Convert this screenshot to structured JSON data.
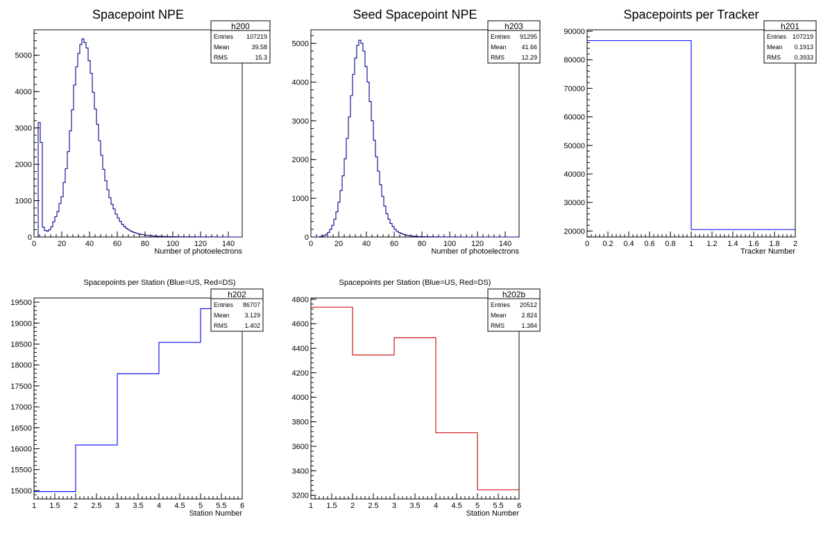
{
  "chart_data": [
    {
      "id": "h200",
      "type": "histogram",
      "title": "Spacepoint NPE",
      "xlabel": "Number of photoelectrons",
      "ylabel": "",
      "xlim": [
        0,
        150
      ],
      "ylim": [
        0,
        5700
      ],
      "x_ticks": [
        0,
        20,
        40,
        60,
        80,
        100,
        120,
        140
      ],
      "y_ticks": [
        0,
        1000,
        2000,
        3000,
        4000,
        5000
      ],
      "line_color": "#00008b",
      "bin_width": 1.5,
      "values": [
        0,
        0,
        3150,
        2600,
        270,
        180,
        160,
        200,
        280,
        420,
        560,
        700,
        920,
        1110,
        1500,
        1880,
        2350,
        2920,
        3500,
        4180,
        4680,
        5050,
        5300,
        5450,
        5350,
        5200,
        4850,
        4500,
        3980,
        3520,
        3100,
        2650,
        2250,
        1860,
        1550,
        1300,
        1080,
        900,
        770,
        630,
        520,
        430,
        350,
        290,
        240,
        200,
        165,
        140,
        120,
        100,
        85,
        72,
        62,
        52,
        45,
        38,
        32,
        28,
        24,
        20,
        18,
        16,
        14,
        12,
        11,
        10,
        9,
        8,
        7,
        6,
        5,
        5,
        4,
        4,
        3,
        3,
        3,
        2,
        2,
        2,
        2,
        1,
        1,
        1,
        1,
        1,
        1,
        1,
        0,
        0,
        0,
        0,
        0,
        0,
        0,
        0,
        0,
        0,
        0,
        0
      ],
      "stats": {
        "name": "h200",
        "rows": [
          [
            "Entries",
            "107219"
          ],
          [
            "Mean",
            "39.58"
          ],
          [
            "RMS",
            "15.3"
          ]
        ]
      }
    },
    {
      "id": "h203",
      "type": "histogram",
      "title": "Seed Spacepoint NPE",
      "xlabel": "Number of photoelectrons",
      "ylabel": "",
      "xlim": [
        0,
        150
      ],
      "ylim": [
        0,
        5350
      ],
      "x_ticks": [
        0,
        20,
        40,
        60,
        80,
        100,
        120,
        140
      ],
      "y_ticks": [
        0,
        1000,
        2000,
        3000,
        4000,
        5000
      ],
      "line_color": "#00008b",
      "bin_width": 1.5,
      "values": [
        0,
        0,
        0,
        0,
        10,
        20,
        40,
        70,
        120,
        200,
        300,
        460,
        650,
        900,
        1200,
        1580,
        2020,
        2550,
        3100,
        3650,
        4200,
        4620,
        4950,
        5080,
        5000,
        4800,
        4400,
        4000,
        3500,
        3000,
        2500,
        2070,
        1700,
        1350,
        1050,
        800,
        600,
        460,
        350,
        270,
        200,
        150,
        115,
        90,
        70,
        55,
        42,
        33,
        26,
        20,
        16,
        13,
        10,
        8,
        7,
        6,
        5,
        4,
        4,
        3,
        3,
        2,
        2,
        2,
        2,
        1,
        1,
        1,
        1,
        1,
        1,
        0,
        0,
        0,
        0,
        0,
        0,
        0,
        0,
        0,
        0,
        0,
        0,
        0,
        0,
        0,
        0,
        0,
        0,
        0,
        0,
        0,
        0,
        0,
        0,
        0,
        0,
        0,
        0,
        0
      ],
      "stats": {
        "name": "h203",
        "rows": [
          [
            "Entries",
            "91295"
          ],
          [
            "Mean",
            "41.66"
          ],
          [
            "RMS",
            "12.29"
          ]
        ]
      }
    },
    {
      "id": "h201",
      "type": "histogram",
      "title": "Spacepoints per Tracker",
      "xlabel": "Tracker Number",
      "ylabel": "",
      "xlim": [
        0,
        2
      ],
      "ylim": [
        17900,
        90500
      ],
      "x_ticks": [
        0,
        0.2,
        0.4,
        0.6,
        0.8,
        1,
        1.2,
        1.4,
        1.6,
        1.8,
        2
      ],
      "x_tick_labels": [
        "0",
        "0.2",
        "0.4",
        "0.6",
        "0.8",
        "1",
        "1.2",
        "1.4",
        "1.6",
        "1.8",
        "2"
      ],
      "y_ticks": [
        20000,
        30000,
        40000,
        50000,
        60000,
        70000,
        80000,
        90000
      ],
      "line_color": "#0000ff",
      "bin_width": 1,
      "values": [
        86707,
        20512
      ],
      "stats": {
        "name": "h201",
        "rows": [
          [
            "Entries",
            "107219"
          ],
          [
            "Mean",
            "0.1913"
          ],
          [
            "RMS",
            "0.3933"
          ]
        ]
      }
    },
    {
      "id": "h202",
      "type": "histogram",
      "title": "Spacepoints per Station (Blue=US, Red=DS)",
      "xlabel": "Station Number",
      "ylabel": "",
      "xlim": [
        1,
        6
      ],
      "ylim": [
        14800,
        19600
      ],
      "x_ticks": [
        1,
        1.5,
        2,
        2.5,
        3,
        3.5,
        4,
        4.5,
        5,
        5.5,
        6
      ],
      "x_tick_labels": [
        "1",
        "1.5",
        "2",
        "2.5",
        "3",
        "3.5",
        "4",
        "4.5",
        "5",
        "5.5",
        "6"
      ],
      "y_ticks": [
        15000,
        15500,
        16000,
        16500,
        17000,
        17500,
        18000,
        18500,
        19000,
        19500
      ],
      "line_color": "#0000ff",
      "bin_width": 1,
      "values": [
        14975,
        16090,
        17790,
        18540,
        19345
      ],
      "stats": {
        "name": "h202",
        "rows": [
          [
            "Entries",
            "86707"
          ],
          [
            "Mean",
            "3.129"
          ],
          [
            "RMS",
            "1.402"
          ]
        ]
      }
    },
    {
      "id": "h202b",
      "type": "histogram",
      "title": "Spacepoints per Station (Blue=US, Red=DS)",
      "xlabel": "Station Number",
      "ylabel": "",
      "xlim": [
        1,
        6
      ],
      "ylim": [
        3170,
        4810
      ],
      "x_ticks": [
        1,
        1.5,
        2,
        2.5,
        3,
        3.5,
        4,
        4.5,
        5,
        5.5,
        6
      ],
      "x_tick_labels": [
        "1",
        "1.5",
        "2",
        "2.5",
        "3",
        "3.5",
        "4",
        "4.5",
        "5",
        "5.5",
        "6"
      ],
      "y_ticks": [
        3200,
        3400,
        3600,
        3800,
        4000,
        4200,
        4400,
        4600,
        4800
      ],
      "line_color": "#cc0000",
      "bin_width": 1,
      "values": [
        4735,
        4345,
        4485,
        3710,
        3245
      ],
      "stats": {
        "name": "h202b",
        "rows": [
          [
            "Entries",
            "20512"
          ],
          [
            "Mean",
            "2.824"
          ],
          [
            "RMS",
            "1.384"
          ]
        ]
      }
    }
  ]
}
